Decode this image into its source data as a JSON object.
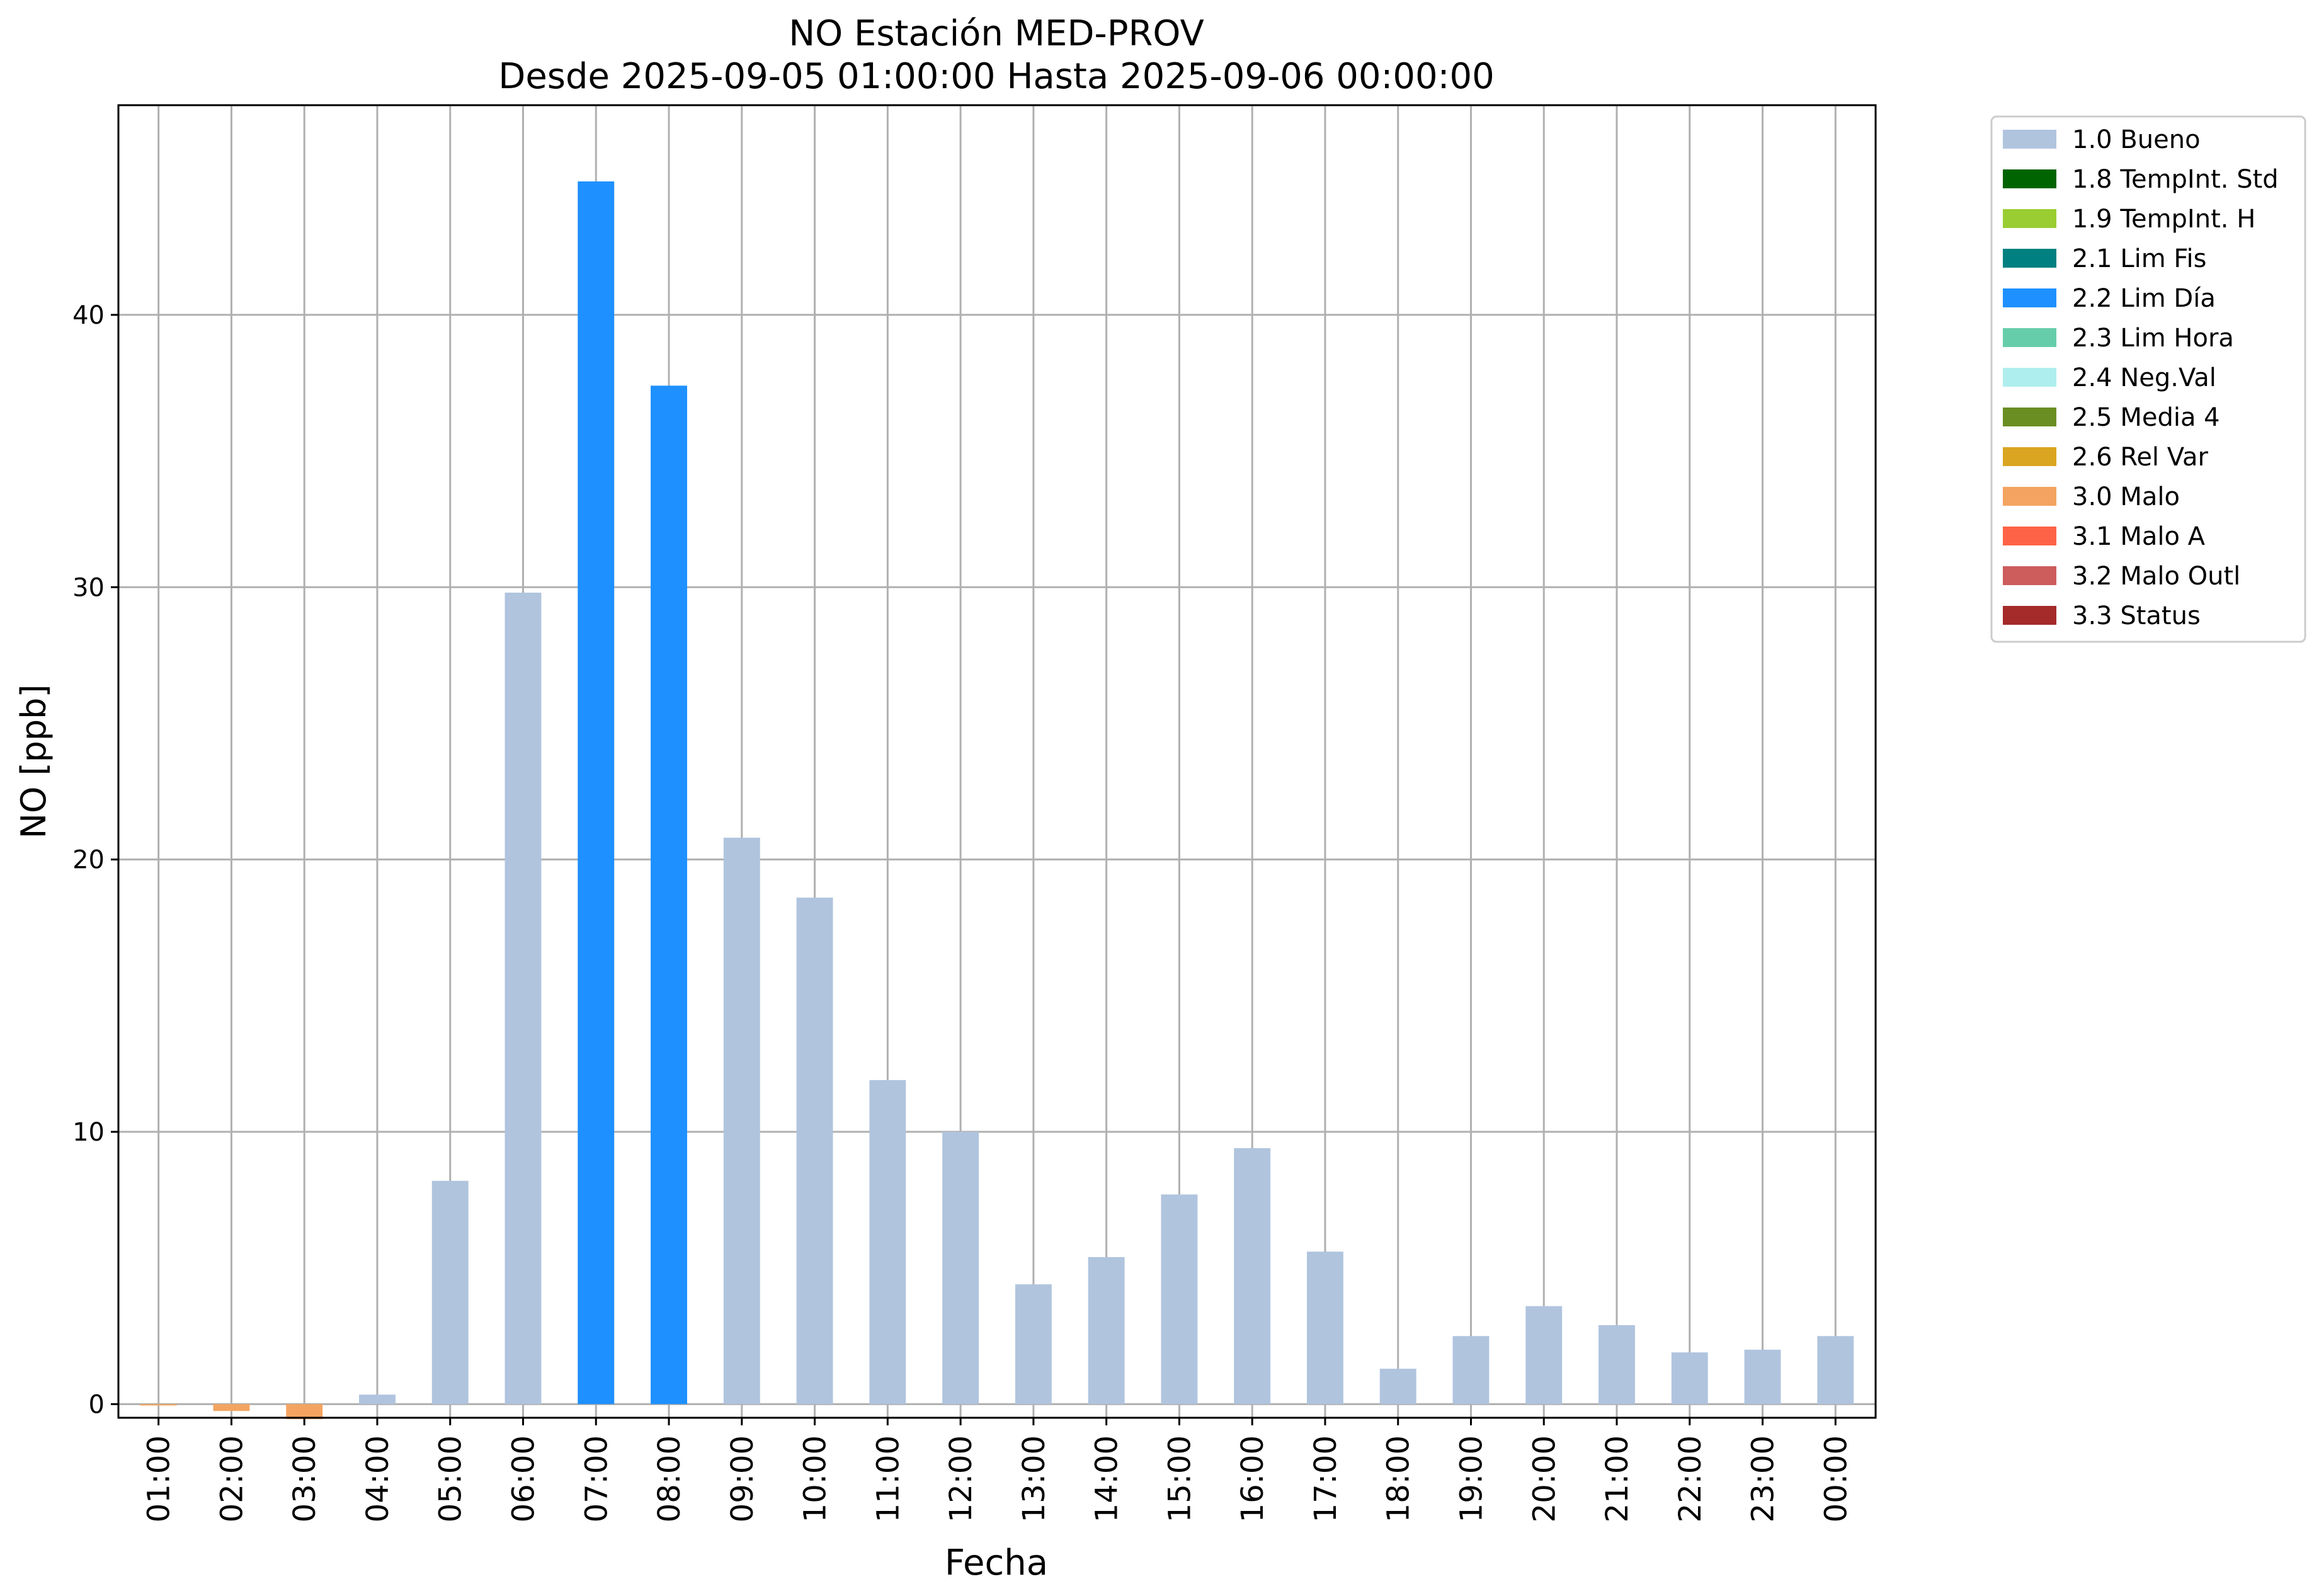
{
  "chart_data": {
    "type": "bar",
    "title": "NO Estación MED-PROV",
    "subtitle": "Desde 2025-09-05 01:00:00 Hasta 2025-09-06 00:00:00",
    "xlabel": "Fecha",
    "ylabel": "NO [ppb]",
    "ylim": [
      -0.5,
      47.7
    ],
    "yticks": [
      0,
      10,
      20,
      30,
      40
    ],
    "grid": true,
    "legend_position": "outside-top-right",
    "categories": [
      "01:00",
      "02:00",
      "03:00",
      "04:00",
      "05:00",
      "06:00",
      "07:00",
      "08:00",
      "09:00",
      "10:00",
      "11:00",
      "12:00",
      "13:00",
      "14:00",
      "15:00",
      "16:00",
      "17:00",
      "18:00",
      "19:00",
      "20:00",
      "21:00",
      "22:00",
      "23:00",
      "00:00"
    ],
    "values": [
      -0.05,
      -0.25,
      -0.55,
      0.35,
      8.2,
      29.8,
      44.9,
      37.4,
      20.8,
      18.6,
      11.9,
      10.0,
      4.4,
      5.4,
      7.7,
      9.4,
      5.6,
      1.3,
      2.5,
      3.6,
      2.9,
      1.9,
      2.0,
      2.5
    ],
    "flags": [
      "3.0 Malo",
      "3.0 Malo",
      "3.0 Malo",
      "1.0 Bueno",
      "1.0 Bueno",
      "1.0 Bueno",
      "2.2 Lim Día",
      "2.2 Lim Día",
      "1.0 Bueno",
      "1.0 Bueno",
      "1.0 Bueno",
      "1.0 Bueno",
      "1.0 Bueno",
      "1.0 Bueno",
      "1.0 Bueno",
      "1.0 Bueno",
      "1.0 Bueno",
      "1.0 Bueno",
      "1.0 Bueno",
      "1.0 Bueno",
      "1.0 Bueno",
      "1.0 Bueno",
      "1.0 Bueno",
      "1.0 Bueno"
    ],
    "legend": [
      {
        "label": "1.0 Bueno",
        "color": "#b0c4de"
      },
      {
        "label": "1.8 TempInt. Std",
        "color": "#006400"
      },
      {
        "label": "1.9 TempInt. H",
        "color": "#9acd32"
      },
      {
        "label": "2.1 Lim Fis",
        "color": "#008080"
      },
      {
        "label": "2.2 Lim Día",
        "color": "#1e90ff"
      },
      {
        "label": "2.3 Lim Hora",
        "color": "#66cdaa"
      },
      {
        "label": "2.4 Neg.Val",
        "color": "#afeeee"
      },
      {
        "label": "2.5 Media 4",
        "color": "#6b8e23"
      },
      {
        "label": "2.6 Rel Var",
        "color": "#daa520"
      },
      {
        "label": "3.0 Malo",
        "color": "#f4a460"
      },
      {
        "label": "3.1 Malo A",
        "color": "#ff6347"
      },
      {
        "label": "3.2 Malo Outl",
        "color": "#cd5c5c"
      },
      {
        "label": "3.3 Status",
        "color": "#a52a2a"
      }
    ]
  }
}
